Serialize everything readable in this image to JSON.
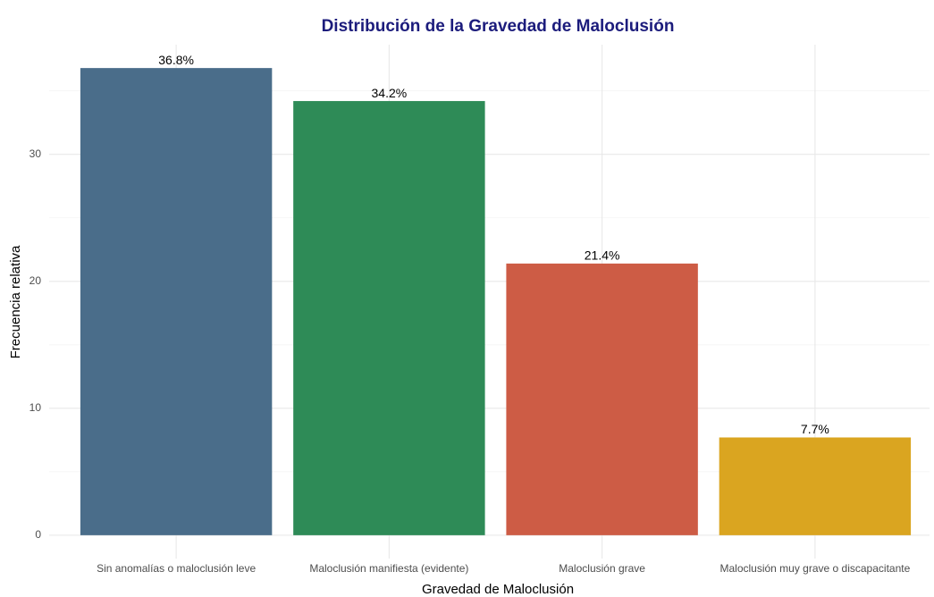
{
  "chart_data": {
    "type": "bar",
    "title": "Distribución de la Gravedad de Maloclusión",
    "x_label": "Gravedad de Maloclusión",
    "y_label": "Frecuencia relativa",
    "categories": [
      "Sin anomalías o maloclusión leve",
      "Maloclusión manifiesta (evidente)",
      "Maloclusión grave",
      "Maloclusión muy grave o discapacitante"
    ],
    "values": [
      36.8,
      34.2,
      21.4,
      7.7
    ],
    "value_labels": [
      "36.8%",
      "34.2%",
      "21.4%",
      "7.7%"
    ],
    "colors": [
      "#4a6d8a",
      "#2e8b57",
      "#cd5c45",
      "#daa520"
    ],
    "ylim": [
      -1.84,
      38.64
    ],
    "yticks": [
      0,
      10,
      20,
      30
    ],
    "minor_yticks": [
      5,
      15,
      25,
      35
    ],
    "grid": true
  }
}
